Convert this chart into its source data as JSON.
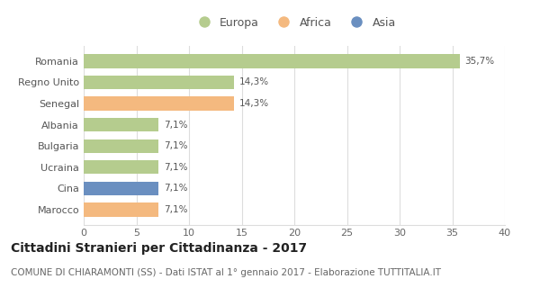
{
  "categories": [
    "Romania",
    "Regno Unito",
    "Senegal",
    "Albania",
    "Bulgaria",
    "Ucraina",
    "Cina",
    "Marocco"
  ],
  "values": [
    35.7,
    14.3,
    14.3,
    7.1,
    7.1,
    7.1,
    7.1,
    7.1
  ],
  "labels": [
    "35,7%",
    "14,3%",
    "14,3%",
    "7,1%",
    "7,1%",
    "7,1%",
    "7,1%",
    "7,1%"
  ],
  "bar_colors": [
    "#b5cc8e",
    "#b5cc8e",
    "#f4b97f",
    "#b5cc8e",
    "#b5cc8e",
    "#b5cc8e",
    "#6a8fc0",
    "#f4b97f"
  ],
  "legend_labels": [
    "Europa",
    "Africa",
    "Asia"
  ],
  "legend_colors": [
    "#b5cc8e",
    "#f4b97f",
    "#6a8fc0"
  ],
  "title": "Cittadini Stranieri per Cittadinanza - 2017",
  "subtitle": "COMUNE DI CHIARAMONTI (SS) - Dati ISTAT al 1° gennaio 2017 - Elaborazione TUTTITALIA.IT",
  "xlim": [
    0,
    40
  ],
  "xticks": [
    0,
    5,
    10,
    15,
    20,
    25,
    30,
    35,
    40
  ],
  "grid_color": "#dddddd",
  "bg_color": "#ffffff",
  "title_fontsize": 10,
  "subtitle_fontsize": 7.5,
  "label_fontsize": 7.5,
  "tick_fontsize": 8,
  "legend_fontsize": 9
}
